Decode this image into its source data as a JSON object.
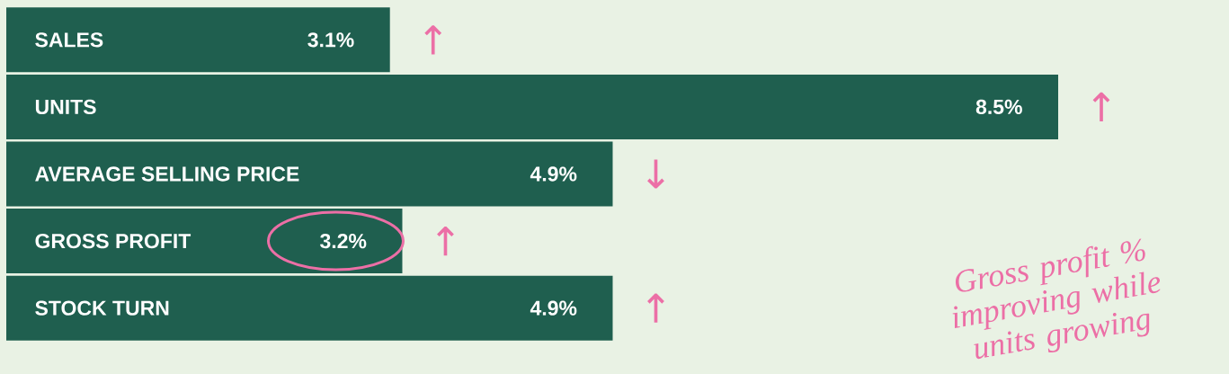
{
  "chart_data": {
    "type": "bar",
    "orientation": "horizontal",
    "categories": [
      "SALES",
      "UNITS",
      "AVERAGE SELLING PRICE",
      "GROSS PROFIT",
      "STOCK TURN"
    ],
    "values": [
      3.1,
      8.5,
      4.9,
      3.2,
      4.9
    ],
    "value_labels": [
      "3.1%",
      "8.5%",
      "4.9%",
      "3.2%",
      "4.9%"
    ],
    "color": "#1f5f4f",
    "annotations": [
      "↑",
      "↑",
      "↓",
      "↑",
      "↑",
      "Gross profit % improving while units growing"
    ]
  }
}
